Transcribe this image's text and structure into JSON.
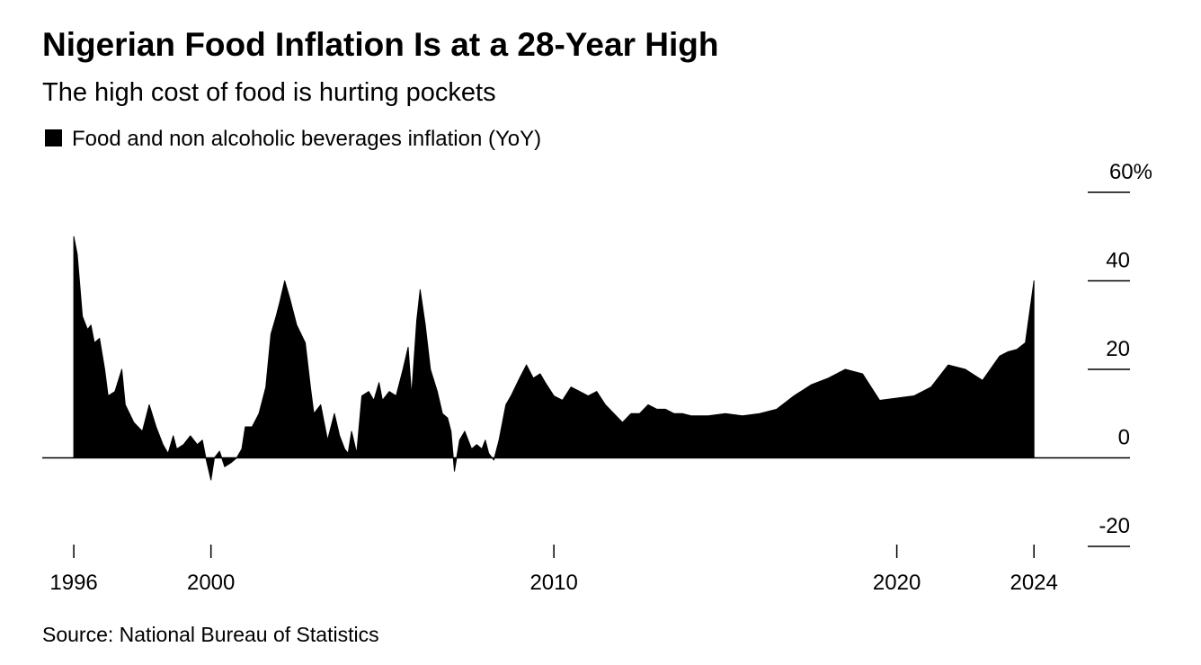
{
  "chart_data": {
    "type": "area",
    "title": "Nigerian Food Inflation Is at a 28-Year High",
    "subtitle": "The high cost of food is hurting pockets",
    "source": "Source: National Bureau of Statistics",
    "series": [
      {
        "name": "Food and non alcoholic beverages inflation (YoY)",
        "color": "#000000",
        "x": [
          1996.0,
          1996.1,
          1996.25,
          1996.4,
          1996.5,
          1996.6,
          1996.75,
          1996.9,
          1997.0,
          1997.2,
          1997.4,
          1997.5,
          1997.75,
          1998.0,
          1998.2,
          1998.4,
          1998.6,
          1998.75,
          1998.9,
          1999.0,
          1999.2,
          1999.4,
          1999.6,
          1999.75,
          1999.85,
          2000.0,
          2000.1,
          2000.25,
          2000.4,
          2000.6,
          2000.75,
          2000.9,
          2001.0,
          2001.2,
          2001.4,
          2001.6,
          2001.75,
          2001.9,
          2002.0,
          2002.15,
          2002.3,
          2002.5,
          2002.75,
          2002.9,
          2003.0,
          2003.2,
          2003.4,
          2003.6,
          2003.75,
          2003.9,
          2004.0,
          2004.1,
          2004.25,
          2004.4,
          2004.6,
          2004.75,
          2004.9,
          2005.0,
          2005.2,
          2005.4,
          2005.6,
          2005.75,
          2005.85,
          2006.0,
          2006.1,
          2006.25,
          2006.4,
          2006.6,
          2006.75,
          2006.9,
          2007.0,
          2007.1,
          2007.25,
          2007.4,
          2007.6,
          2007.75,
          2007.9,
          2008.0,
          2008.1,
          2008.25,
          2008.4,
          2008.6,
          2008.75,
          2009.0,
          2009.2,
          2009.4,
          2009.6,
          2009.75,
          2010.0,
          2010.25,
          2010.5,
          2010.75,
          2011.0,
          2011.25,
          2011.5,
          2011.75,
          2012.0,
          2012.25,
          2012.5,
          2012.75,
          2013.0,
          2013.25,
          2013.5,
          2013.75,
          2014.0,
          2014.5,
          2015.0,
          2015.5,
          2016.0,
          2016.5,
          2017.0,
          2017.5,
          2018.0,
          2018.5,
          2019.0,
          2019.5,
          2020.0,
          2020.5,
          2021.0,
          2021.5,
          2022.0,
          2022.5,
          2023.0,
          2023.25,
          2023.5,
          2023.75,
          2024.0
        ],
        "values": [
          50,
          46,
          32,
          29,
          30,
          26,
          27,
          20,
          14,
          15,
          20,
          12,
          8,
          6,
          12,
          7,
          3,
          1,
          5,
          2,
          3,
          5,
          3,
          4,
          0,
          -5,
          0,
          1.5,
          -2,
          -1,
          0,
          2,
          7,
          7,
          10,
          16,
          28,
          32,
          35,
          40,
          36,
          30,
          26,
          16,
          10,
          12,
          4,
          10,
          5,
          2,
          1,
          6,
          1,
          14,
          15,
          13,
          17,
          13,
          15,
          14,
          20,
          25,
          14,
          31,
          38,
          30,
          20,
          15,
          10,
          9,
          6,
          -3,
          4,
          6,
          2,
          3,
          2,
          4,
          1,
          -0.5,
          4,
          12,
          14,
          18,
          21,
          18,
          19,
          17,
          14,
          13,
          16,
          15,
          14,
          15,
          12,
          10,
          8,
          10,
          10,
          12,
          11,
          11,
          10,
          10,
          9.5,
          9.5,
          10,
          9.5,
          10,
          11,
          14,
          16.5,
          18,
          20,
          19,
          13,
          13.5,
          14,
          16,
          21,
          20,
          17.5,
          23,
          24,
          24.5,
          26,
          40
        ]
      }
    ],
    "xlim": [
      1995.08,
      2026.8
    ],
    "xticks": [
      1996,
      2000,
      2010,
      2020,
      2024
    ],
    "ylim": [
      -20,
      60
    ],
    "yticks": [
      -20,
      0,
      20,
      40,
      {
        "value": 60,
        "label": "60%"
      }
    ]
  }
}
